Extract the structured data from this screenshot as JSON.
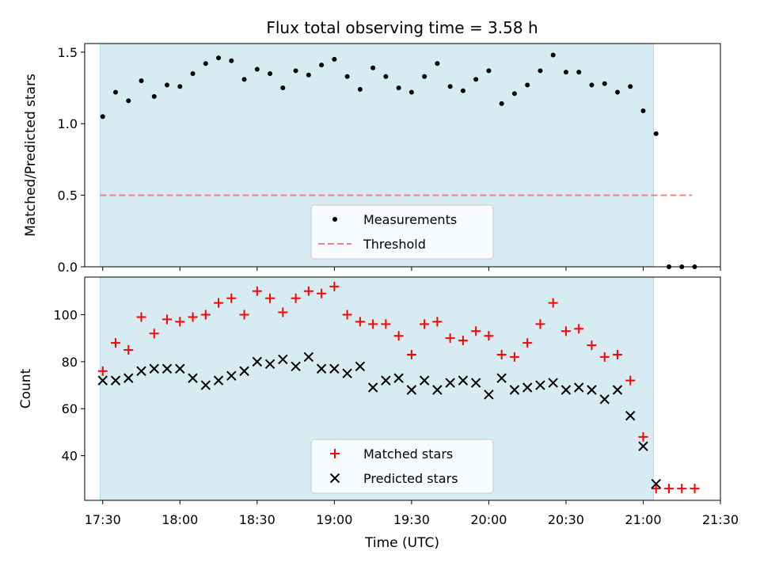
{
  "title": "Flux total observing time = 3.58 h",
  "xlabel": "Time (UTC)",
  "xticks": [
    "17:30",
    "18:00",
    "18:30",
    "19:00",
    "19:30",
    "20:00",
    "20:30",
    "21:00",
    "21:30"
  ],
  "colors": {
    "shade": "#add8e6",
    "threshold": "#f08080",
    "matched": "#ff0000",
    "predicted": "#000000",
    "measurements": "#000000"
  },
  "chart_data": [
    {
      "type": "scatter",
      "ylabel": "Matched/Predicted stars",
      "xlim": [
        "17:23",
        "21:30"
      ],
      "ylim": [
        0,
        1.56
      ],
      "yticks": [
        "0.0",
        "0.5",
        "1.0",
        "1.5"
      ],
      "shaded_interval": [
        "17:29",
        "21:04"
      ],
      "threshold": 0.5,
      "threshold_x": [
        "17:29",
        "21:19"
      ],
      "legend": {
        "placement": "lower-center",
        "entries": [
          "Measurements",
          "Threshold"
        ]
      },
      "series": [
        {
          "name": "Measurements",
          "x": [
            "17:30",
            "17:35",
            "17:40",
            "17:45",
            "17:50",
            "17:55",
            "18:00",
            "18:05",
            "18:10",
            "18:15",
            "18:20",
            "18:25",
            "18:30",
            "18:35",
            "18:40",
            "18:45",
            "18:50",
            "18:55",
            "19:00",
            "19:05",
            "19:10",
            "19:15",
            "19:20",
            "19:25",
            "19:30",
            "19:35",
            "19:40",
            "19:45",
            "19:50",
            "19:55",
            "20:00",
            "20:05",
            "20:10",
            "20:15",
            "20:20",
            "20:25",
            "20:30",
            "20:35",
            "20:40",
            "20:45",
            "20:50",
            "20:55",
            "21:00",
            "21:05",
            "21:10",
            "21:15",
            "21:20"
          ],
          "y": [
            1.05,
            1.22,
            1.16,
            1.3,
            1.19,
            1.27,
            1.26,
            1.35,
            1.42,
            1.46,
            1.44,
            1.31,
            1.38,
            1.35,
            1.25,
            1.37,
            1.34,
            1.41,
            1.45,
            1.33,
            1.24,
            1.39,
            1.33,
            1.25,
            1.22,
            1.33,
            1.42,
            1.26,
            1.23,
            1.31,
            1.37,
            1.14,
            1.21,
            1.27,
            1.37,
            1.48,
            1.36,
            1.36,
            1.27,
            1.28,
            1.22,
            1.26,
            1.09,
            0.93,
            0.0,
            0.0,
            0.0
          ]
        }
      ]
    },
    {
      "type": "scatter",
      "ylabel": "Count",
      "xlim": [
        "17:23",
        "21:30"
      ],
      "ylim": [
        21,
        116
      ],
      "yticks": [
        "40",
        "60",
        "80",
        "100"
      ],
      "shaded_interval": [
        "17:29",
        "21:04"
      ],
      "legend": {
        "placement": "lower-center",
        "entries": [
          "Matched stars",
          "Predicted stars"
        ]
      },
      "series": [
        {
          "name": "Matched stars",
          "x": [
            "17:30",
            "17:35",
            "17:40",
            "17:45",
            "17:50",
            "17:55",
            "18:00",
            "18:05",
            "18:10",
            "18:15",
            "18:20",
            "18:25",
            "18:30",
            "18:35",
            "18:40",
            "18:45",
            "18:50",
            "18:55",
            "19:00",
            "19:05",
            "19:10",
            "19:15",
            "19:20",
            "19:25",
            "19:30",
            "19:35",
            "19:40",
            "19:45",
            "19:50",
            "19:55",
            "20:00",
            "20:05",
            "20:10",
            "20:15",
            "20:20",
            "20:25",
            "20:30",
            "20:35",
            "20:40",
            "20:45",
            "20:50",
            "20:55",
            "21:00",
            "21:05",
            "21:10",
            "21:15",
            "21:20"
          ],
          "y": [
            76,
            88,
            85,
            99,
            92,
            98,
            97,
            99,
            100,
            105,
            107,
            100,
            110,
            107,
            101,
            107,
            110,
            109,
            112,
            100,
            97,
            96,
            96,
            91,
            83,
            96,
            97,
            90,
            89,
            93,
            91,
            83,
            82,
            88,
            96,
            105,
            93,
            94,
            87,
            82,
            83,
            72,
            48,
            26,
            26,
            26,
            26
          ]
        },
        {
          "name": "Predicted stars",
          "x": [
            "17:30",
            "17:35",
            "17:40",
            "17:45",
            "17:50",
            "17:55",
            "18:00",
            "18:05",
            "18:10",
            "18:15",
            "18:20",
            "18:25",
            "18:30",
            "18:35",
            "18:40",
            "18:45",
            "18:50",
            "18:55",
            "19:00",
            "19:05",
            "19:10",
            "19:15",
            "19:20",
            "19:25",
            "19:30",
            "19:35",
            "19:40",
            "19:45",
            "19:50",
            "19:55",
            "20:00",
            "20:05",
            "20:10",
            "20:15",
            "20:20",
            "20:25",
            "20:30",
            "20:35",
            "20:40",
            "20:45",
            "20:50",
            "20:55",
            "21:00",
            "21:05"
          ],
          "y": [
            72,
            72,
            73,
            76,
            77,
            77,
            77,
            73,
            70,
            72,
            74,
            76,
            80,
            79,
            81,
            78,
            82,
            77,
            77,
            75,
            78,
            69,
            72,
            73,
            68,
            72,
            68,
            71,
            72,
            71,
            66,
            73,
            68,
            69,
            70,
            71,
            68,
            69,
            68,
            64,
            68,
            57,
            44,
            28
          ]
        }
      ]
    }
  ]
}
